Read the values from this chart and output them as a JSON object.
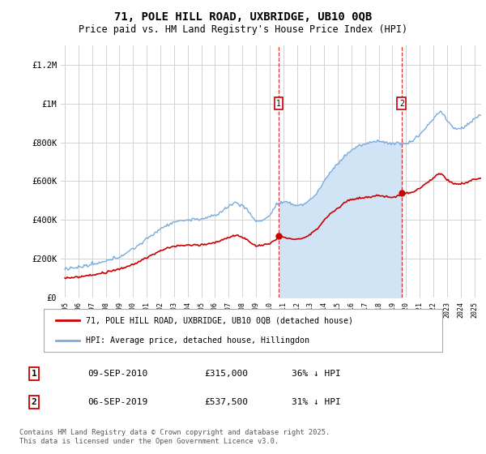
{
  "title_line1": "71, POLE HILL ROAD, UXBRIDGE, UB10 0QB",
  "title_line2": "Price paid vs. HM Land Registry's House Price Index (HPI)",
  "ylabel_ticks": [
    "£0",
    "£200K",
    "£400K",
    "£600K",
    "£800K",
    "£1M",
    "£1.2M"
  ],
  "ytick_values": [
    0,
    200000,
    400000,
    600000,
    800000,
    1000000,
    1200000
  ],
  "ylim": [
    0,
    1300000
  ],
  "hpi_color": "#7aaadc",
  "price_color": "#cc0000",
  "shade_color": "#d0e4f5",
  "transaction1": {
    "label": "1",
    "date": "09-SEP-2010",
    "price": 315000,
    "hpi_pct": "36% ↓ HPI",
    "year": 2010.67
  },
  "transaction2": {
    "label": "2",
    "date": "06-SEP-2019",
    "price": 537500,
    "hpi_pct": "31% ↓ HPI",
    "year": 2019.67
  },
  "legend_line1": "71, POLE HILL ROAD, UXBRIDGE, UB10 0QB (detached house)",
  "legend_line2": "HPI: Average price, detached house, Hillingdon",
  "footer": "Contains HM Land Registry data © Crown copyright and database right 2025.\nThis data is licensed under the Open Government Licence v3.0.",
  "xtick_years": [
    "1995",
    "1996",
    "1997",
    "1998",
    "1999",
    "2000",
    "2001",
    "2002",
    "2003",
    "2004",
    "2005",
    "2006",
    "2007",
    "2008",
    "2009",
    "2010",
    "2011",
    "2012",
    "2013",
    "2014",
    "2015",
    "2016",
    "2017",
    "2018",
    "2019",
    "2020",
    "2021",
    "2022",
    "2023",
    "2024",
    "2025"
  ],
  "xlim_left": 1994.7,
  "xlim_right": 2025.5
}
